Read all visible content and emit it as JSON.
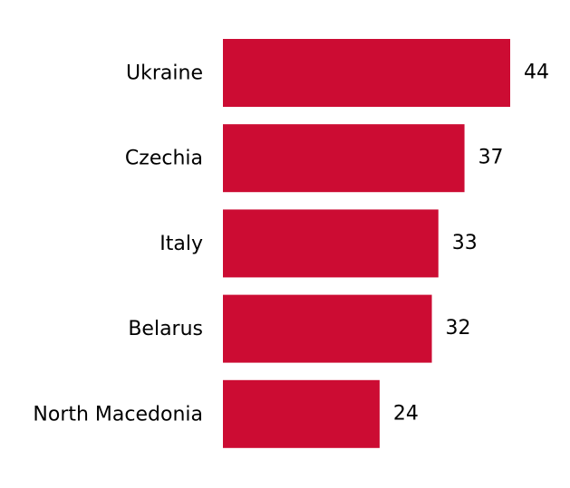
{
  "chart_data": {
    "type": "bar",
    "orientation": "horizontal",
    "categories": [
      "Ukraine",
      "Czechia",
      "Italy",
      "Belarus",
      "North Macedonia"
    ],
    "values": [
      44,
      37,
      33,
      32,
      24
    ],
    "color": "#cc0c33"
  }
}
